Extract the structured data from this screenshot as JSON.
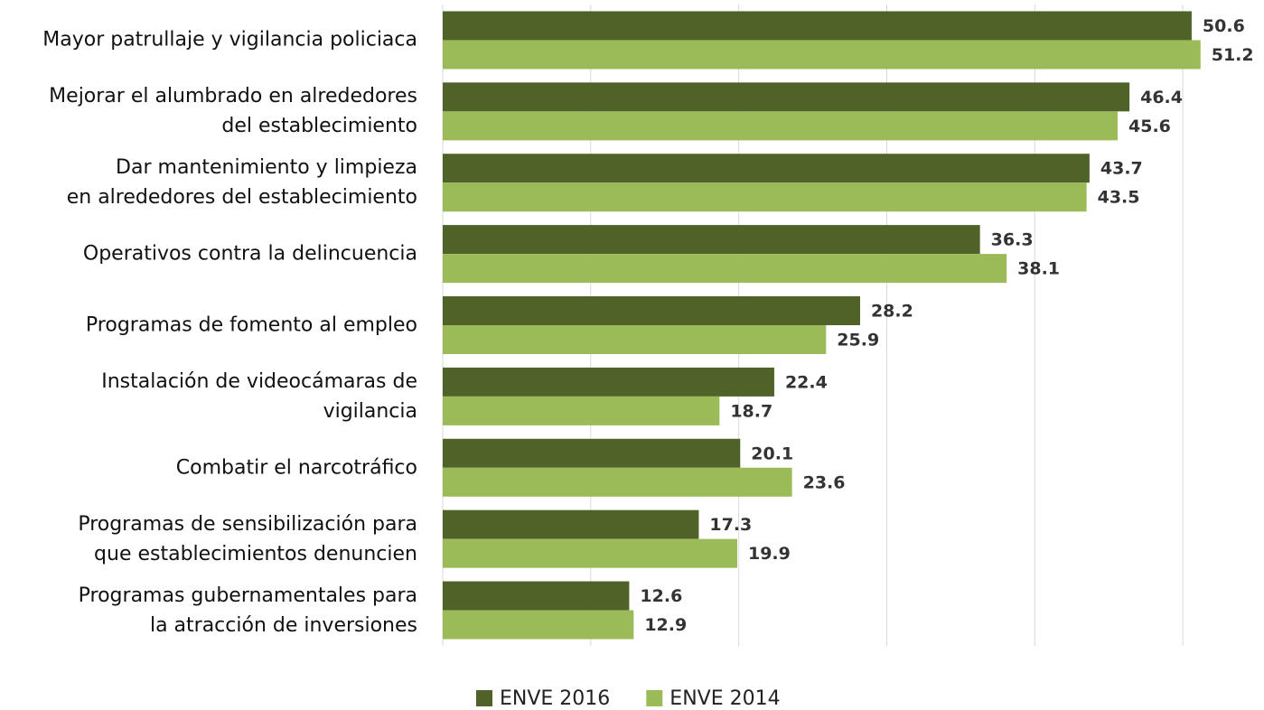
{
  "chart_data": {
    "type": "barh",
    "categories": [
      "Mayor patrullaje y vigilancia policiaca",
      "Mejorar el alumbrado en alrededores\ndel establecimiento",
      "Dar mantenimiento y limpieza\nen alrededores del establecimiento",
      "Operativos contra la delincuencia",
      "Programas de fomento al empleo",
      "Instalación de videocámaras de\nvigilancia",
      "Combatir el narcotráfico",
      "Programas de sensibilización para\nque establecimientos denuncien",
      "Programas gubernamentales para\nla atracción de inversiones"
    ],
    "series": [
      {
        "name": "ENVE 2016",
        "color": "#4f6228",
        "values": [
          50.6,
          46.4,
          43.7,
          36.3,
          28.2,
          22.4,
          20.1,
          17.3,
          12.6
        ]
      },
      {
        "name": "ENVE 2014",
        "color": "#9bbb59",
        "values": [
          51.2,
          45.6,
          43.5,
          38.1,
          25.9,
          18.7,
          23.6,
          19.9,
          12.9
        ]
      }
    ],
    "xlim": [
      0,
      55
    ],
    "xticks": [
      0,
      10,
      20,
      30,
      40,
      50
    ],
    "grid": true,
    "legend": "bottom"
  }
}
